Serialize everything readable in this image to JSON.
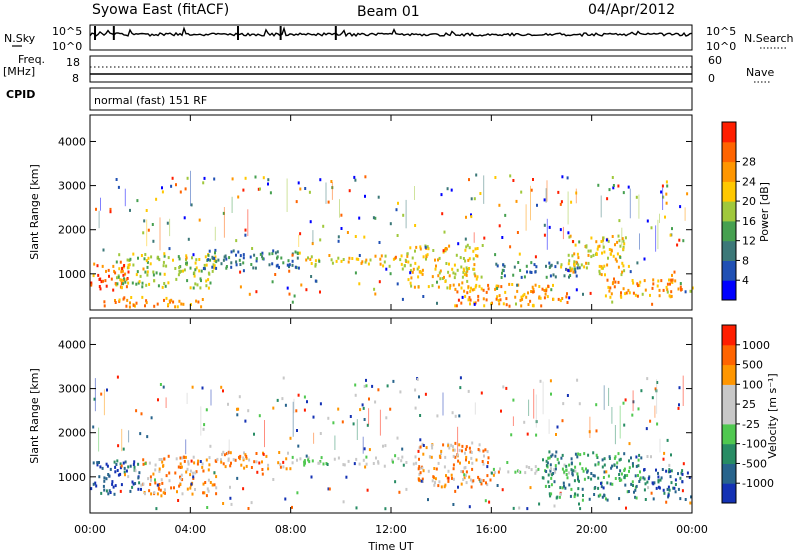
{
  "header": {
    "station": "Syowa East (fitACF)",
    "beam": "Beam 01",
    "date": "04/Apr/2012"
  },
  "left_labels": {
    "nsky": "N.Sky",
    "freq_line1": "Freq.",
    "freq_line2": "[MHz]",
    "cpid": "CPID"
  },
  "right_labels": {
    "nsearch": "N.Search",
    "nave": "Nave"
  },
  "noise_panel": {
    "left_ticks": [
      "10^5",
      "10^0"
    ],
    "right_ticks": [
      "10^5",
      "10^0"
    ]
  },
  "freq_panel": {
    "left_ticks": [
      "18",
      "8"
    ],
    "right_ticks": [
      "60",
      "0"
    ]
  },
  "cpid_text": "normal (fast) 151 RF",
  "chart_data": [
    {
      "type": "heatmap",
      "title": "",
      "xlabel": "",
      "ylabel": "Slant Range [km]",
      "x_ticks": [
        "00:00",
        "04:00",
        "08:00",
        "12:00",
        "16:00",
        "20:00",
        "00:00"
      ],
      "x_range_hours": [
        0,
        24
      ],
      "y_ticks": [
        1000,
        2000,
        3000,
        4000
      ],
      "ylim": [
        180,
        4600
      ],
      "colorbar": {
        "label": "Power [dB]",
        "ticks": [
          "4",
          "8",
          "12",
          "16",
          "20",
          "24",
          "28"
        ],
        "colors": [
          "#0000ff",
          "#2050b4",
          "#3c7878",
          "#46a050",
          "#a0c83c",
          "#ffc800",
          "#ff9600",
          "#ff6400",
          "#ff1e00"
        ]
      },
      "bands": [
        {
          "t0": 0.0,
          "t1": 1.5,
          "r0": 600,
          "r1": 1300,
          "level": 7
        },
        {
          "t0": 0.0,
          "t1": 4.5,
          "r0": 280,
          "r1": 500,
          "level": 6
        },
        {
          "t0": 1.0,
          "t1": 5.0,
          "r0": 700,
          "r1": 1500,
          "level": 4
        },
        {
          "t0": 4.5,
          "t1": 8.5,
          "r0": 1150,
          "r1": 1600,
          "level": 2
        },
        {
          "t0": 8.5,
          "t1": 12.5,
          "r0": 1200,
          "r1": 1450,
          "level": 5
        },
        {
          "t0": 12.5,
          "t1": 15.5,
          "r0": 700,
          "r1": 1700,
          "level": 5
        },
        {
          "t0": 14.5,
          "t1": 19.0,
          "r0": 300,
          "r1": 800,
          "level": 6
        },
        {
          "t0": 16.0,
          "t1": 19.5,
          "r0": 950,
          "r1": 1300,
          "level": 2
        },
        {
          "t0": 19.0,
          "t1": 21.5,
          "r0": 1000,
          "r1": 1900,
          "level": 5
        },
        {
          "t0": 20.5,
          "t1": 24.0,
          "r0": 500,
          "r1": 900,
          "level": 6
        }
      ]
    },
    {
      "type": "heatmap",
      "title": "",
      "xlabel": "Time UT",
      "ylabel": "Slant Range [km]",
      "x_ticks": [
        "00:00",
        "04:00",
        "08:00",
        "12:00",
        "16:00",
        "20:00",
        "00:00"
      ],
      "x_range_hours": [
        0,
        24
      ],
      "y_ticks": [
        1000,
        2000,
        3000,
        4000
      ],
      "ylim": [
        180,
        4600
      ],
      "colorbar": {
        "label": "Velocity [m s⁻¹]",
        "ticks": [
          "1000",
          "500",
          "100",
          "25",
          "-25",
          "-100",
          "-500",
          "-1000"
        ],
        "colors": [
          "#1432b4",
          "#28648c",
          "#288c64",
          "#50c850",
          "#c8c8c8",
          "#c8c8c8",
          "#ff9600",
          "#ff6400",
          "#ff1e00"
        ]
      },
      "bands": [
        {
          "t0": 0.0,
          "t1": 2.0,
          "r0": 600,
          "r1": 1400,
          "level": 1
        },
        {
          "t0": 2.0,
          "t1": 5.0,
          "r0": 600,
          "r1": 1500,
          "level": 6
        },
        {
          "t0": 5.0,
          "t1": 8.0,
          "r0": 1200,
          "r1": 1600,
          "level": 6
        },
        {
          "t0": 8.0,
          "t1": 13.0,
          "r0": 1300,
          "r1": 1500,
          "level": 4
        },
        {
          "t0": 13.0,
          "t1": 16.0,
          "r0": 800,
          "r1": 1800,
          "level": 6
        },
        {
          "t0": 16.0,
          "t1": 19.5,
          "r0": 1100,
          "r1": 1300,
          "level": 4
        },
        {
          "t0": 18.0,
          "t1": 22.0,
          "r0": 500,
          "r1": 1600,
          "level": 2
        },
        {
          "t0": 22.0,
          "t1": 24.0,
          "r0": 500,
          "r1": 1200,
          "level": 1
        }
      ]
    }
  ]
}
